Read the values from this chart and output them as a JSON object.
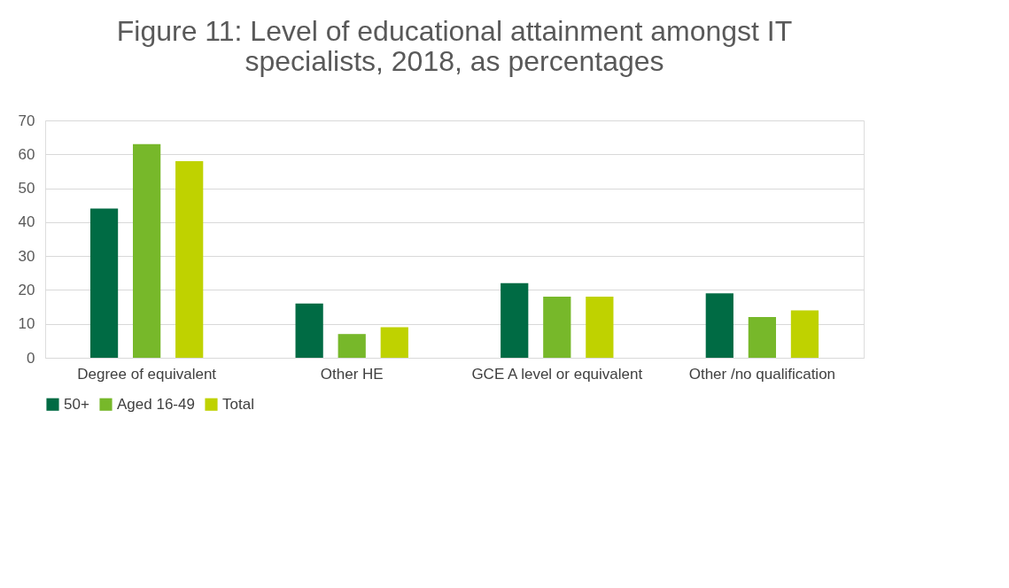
{
  "chart_data": {
    "type": "bar",
    "title": "Figure 11: Level of educational attainment amongst IT specialists, 2018, as percentages",
    "categories": [
      "Degree of equivalent",
      "Other HE",
      "GCE A level or equivalent",
      "Other /no qualification"
    ],
    "series": [
      {
        "name": "50+",
        "color": "#006b44",
        "values": [
          44,
          16,
          22,
          19
        ]
      },
      {
        "name": "Aged 16-49",
        "color": "#77b82a",
        "values": [
          63,
          7,
          18,
          12
        ]
      },
      {
        "name": "Total",
        "color": "#bfd200",
        "values": [
          58,
          9,
          18,
          14
        ]
      }
    ],
    "ylim": [
      0,
      70
    ],
    "yticks": [
      0,
      10,
      20,
      30,
      40,
      50,
      60,
      70
    ],
    "grid": "y",
    "legend": "bottom"
  }
}
